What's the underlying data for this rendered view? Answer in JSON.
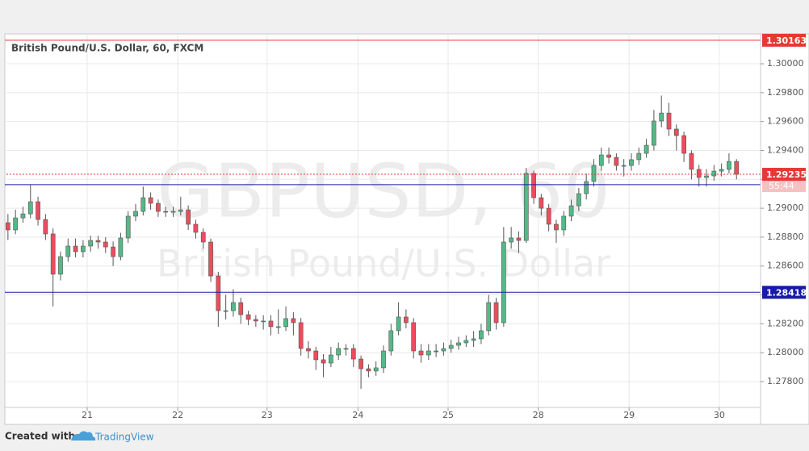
{
  "chart_data": {
    "type": "candlestick",
    "title": "British Pound/U.S. Dollar, 60, FXCM",
    "watermark": [
      "GBPUSD, 60",
      "British Pound/U.S. Dollar"
    ],
    "up_color": "#53b987",
    "down_color": "#eb4d5c",
    "open": [
      1.289,
      1.2885,
      1.28933,
      1.28961,
      1.29045,
      1.28922,
      1.28822,
      1.28543,
      1.28665,
      1.28738,
      1.28699,
      1.28738,
      1.28777,
      1.28766,
      1.28732,
      1.28665,
      1.28794,
      1.28945,
      1.28978,
      1.29073,
      1.29034,
      1.28978,
      1.28973,
      1.28978,
      1.28989,
      1.28889,
      1.28833,
      1.28766,
      1.28531,
      1.28291,
      1.28291,
      1.28347,
      1.28263,
      1.2823,
      1.28219,
      1.28219,
      1.2818,
      1.2818,
      1.28236,
      1.28208,
      1.28029,
      1.28012,
      1.27951,
      1.27928,
      1.27984,
      1.28029,
      1.28029,
      1.27956,
      1.27889,
      1.27873,
      1.27895,
      1.28012,
      1.28152,
      1.28247,
      1.28208,
      1.28012,
      1.27984,
      1.28012,
      1.28012,
      1.28029,
      1.28051,
      1.28068,
      1.28085,
      1.28096,
      1.28152,
      1.28347,
      1.28208,
      1.28766,
      1.28794,
      1.28777,
      1.29241,
      1.29073,
      1.29,
      1.28889,
      1.2885,
      1.28945,
      1.29017,
      1.29101,
      1.29185,
      1.29296,
      1.29369,
      1.29352,
      1.29296,
      1.29296,
      1.29336,
      1.2938,
      1.29436,
      1.29604,
      1.29659,
      1.29548,
      1.29503,
      1.2938,
      1.29269,
      1.29213,
      1.29224,
      1.29257,
      1.29269,
      1.29324
    ],
    "high": [
      1.2896,
      1.2899,
      1.2901,
      1.2916,
      1.2908,
      1.2896,
      1.2886,
      1.287,
      1.2879,
      1.2879,
      1.2878,
      1.2881,
      1.2881,
      1.288,
      1.2877,
      1.2883,
      1.2898,
      1.2903,
      1.2915,
      1.2911,
      1.2906,
      1.2901,
      1.2901,
      1.2908,
      1.2902,
      1.2892,
      1.2886,
      1.2879,
      1.2856,
      1.284,
      1.2844,
      1.2838,
      1.2829,
      1.2826,
      1.2826,
      1.2826,
      1.283,
      1.2832,
      1.2828,
      1.2824,
      1.2808,
      1.2804,
      1.2799,
      1.2804,
      1.2807,
      1.2806,
      1.2806,
      1.2798,
      1.2792,
      1.2794,
      1.2805,
      1.282,
      1.2835,
      1.283,
      1.2824,
      1.2806,
      1.2806,
      1.2806,
      1.2807,
      1.2809,
      1.2811,
      1.2812,
      1.2815,
      1.282,
      1.284,
      1.2838,
      1.2887,
      1.2887,
      1.2884,
      1.2928,
      1.2926,
      1.291,
      1.2903,
      1.2892,
      1.2898,
      1.2906,
      1.2914,
      1.2924,
      1.2934,
      1.2942,
      1.2942,
      1.2938,
      1.2934,
      1.2938,
      1.2942,
      1.2948,
      1.2968,
      1.2978,
      1.2973,
      1.2958,
      1.2953,
      1.294,
      1.293,
      1.2927,
      1.293,
      1.2931,
      1.2938,
      1.2934
    ],
    "low": [
      1.2878,
      1.2882,
      1.289,
      1.2893,
      1.2888,
      1.2878,
      1.2832,
      1.285,
      1.2863,
      1.2866,
      1.2866,
      1.287,
      1.2872,
      1.2869,
      1.286,
      1.2864,
      1.2876,
      1.2891,
      1.2895,
      1.2899,
      1.2894,
      1.2894,
      1.2894,
      1.2895,
      1.2885,
      1.2879,
      1.2872,
      1.2849,
      1.2818,
      1.2823,
      1.2825,
      1.282,
      1.2819,
      1.2818,
      1.2816,
      1.2812,
      1.2813,
      1.2815,
      1.2812,
      1.2798,
      1.2796,
      1.2788,
      1.2783,
      1.279,
      1.2795,
      1.2798,
      1.279,
      1.2775,
      1.2783,
      1.2784,
      1.2786,
      1.2798,
      1.2812,
      1.2817,
      1.2796,
      1.2793,
      1.2795,
      1.2797,
      1.2798,
      1.28,
      1.2802,
      1.2804,
      1.2804,
      1.2806,
      1.2812,
      1.2816,
      1.2818,
      1.2872,
      1.2869,
      1.2876,
      1.2903,
      1.2895,
      1.2884,
      1.2876,
      1.2881,
      1.2891,
      1.2898,
      1.2906,
      1.2915,
      1.2926,
      1.2931,
      1.2926,
      1.2922,
      1.2926,
      1.293,
      1.2935,
      1.294,
      1.2956,
      1.295,
      1.294,
      1.2932,
      1.292,
      1.2915,
      1.2915,
      1.2919,
      1.2922,
      1.2924,
      1.292
    ],
    "close": [
      1.2885,
      1.28933,
      1.28961,
      1.29045,
      1.28922,
      1.28822,
      1.28543,
      1.28665,
      1.28738,
      1.28699,
      1.28738,
      1.28777,
      1.28766,
      1.28732,
      1.28665,
      1.28794,
      1.28945,
      1.28978,
      1.29073,
      1.29034,
      1.28978,
      1.28973,
      1.28978,
      1.28989,
      1.28889,
      1.28833,
      1.28766,
      1.28531,
      1.28291,
      1.28291,
      1.28347,
      1.28263,
      1.2823,
      1.28219,
      1.28219,
      1.2818,
      1.2818,
      1.28236,
      1.28208,
      1.28029,
      1.28012,
      1.27951,
      1.27928,
      1.27984,
      1.28029,
      1.28029,
      1.27956,
      1.27889,
      1.27873,
      1.27895,
      1.28012,
      1.28152,
      1.28247,
      1.28208,
      1.28012,
      1.27984,
      1.28012,
      1.28012,
      1.28029,
      1.28051,
      1.28068,
      1.28085,
      1.28096,
      1.28152,
      1.28347,
      1.28208,
      1.28766,
      1.28794,
      1.28777,
      1.29241,
      1.29073,
      1.29,
      1.28889,
      1.2885,
      1.28945,
      1.29017,
      1.29101,
      1.29185,
      1.29296,
      1.29369,
      1.29352,
      1.29296,
      1.29296,
      1.29336,
      1.2938,
      1.29436,
      1.29604,
      1.29659,
      1.29548,
      1.29503,
      1.2938,
      1.29269,
      1.29213,
      1.29224,
      1.29257,
      1.29269,
      1.29324,
      1.29235
    ],
    "xlim": [
      -0.2,
      100.2
    ],
    "xticks": [
      {
        "value": 10.55,
        "label": "21"
      },
      {
        "value": 22.6,
        "label": "22"
      },
      {
        "value": 34.5,
        "label": "23"
      },
      {
        "value": 46.6,
        "label": "24"
      },
      {
        "value": 58.6,
        "label": "25"
      },
      {
        "value": 70.6,
        "label": "28"
      },
      {
        "value": 82.7,
        "label": "29"
      },
      {
        "value": 94.7,
        "label": "30"
      }
    ],
    "ylim": [
      1.27621,
      1.30207
    ],
    "yticks": [
      {
        "value": 1.278,
        "label": "1.27800"
      },
      {
        "value": 1.28,
        "label": "1.28000"
      },
      {
        "value": 1.282,
        "label": "1.28200"
      },
      {
        "value": 1.284,
        "label": "1.28400"
      },
      {
        "value": 1.286,
        "label": "1.28600"
      },
      {
        "value": 1.288,
        "label": "1.28800"
      },
      {
        "value": 1.29,
        "label": "1.29000"
      },
      {
        "value": 1.292,
        "label": "1.29200"
      },
      {
        "value": 1.294,
        "label": "1.29400"
      },
      {
        "value": 1.296,
        "label": "1.29600"
      },
      {
        "value": 1.298,
        "label": "1.29800"
      },
      {
        "value": 1.3,
        "label": "1.30000"
      }
    ],
    "grid": true,
    "levels": [
      {
        "value": 1.30163,
        "color": "#e53935"
      },
      {
        "value": 1.29163,
        "color": "#1a1aa8"
      },
      {
        "value": 1.28418,
        "color": "#1a1aa8"
      }
    ],
    "current": {
      "value": 1.29235,
      "countdown": "55:44",
      "color": "#e53935"
    }
  },
  "footer": {
    "created_with": "Created with",
    "brand": "TradingView"
  }
}
